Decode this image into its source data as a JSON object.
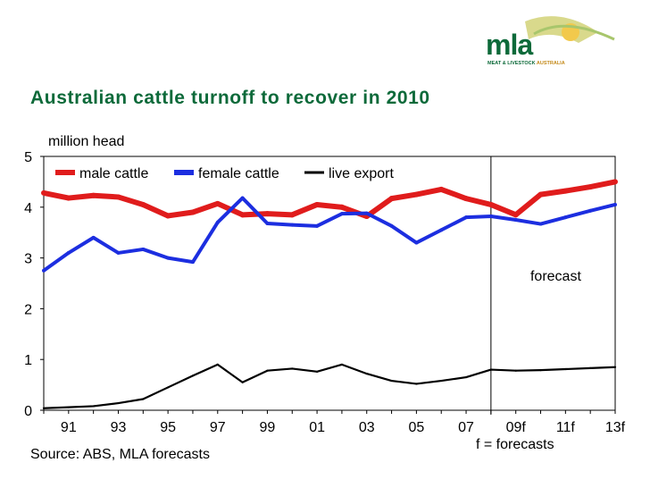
{
  "header": {
    "title": "Australian cattle turnoff to recover in 2010",
    "logo_word": "mla",
    "logo_tag_part1": "MEAT & LIVESTOCK",
    "logo_tag_part2": " AUSTRALIA"
  },
  "colors": {
    "title": "#0d6a3a",
    "male": "#e01c1c",
    "female": "#1c2ee0",
    "live_export": "#000000",
    "logo_sun": "#f2c94c"
  },
  "chart_data": {
    "type": "line",
    "ylabel": "million head",
    "ylim": [
      0,
      5
    ],
    "yticks": [
      "0",
      "1",
      "2",
      "3",
      "4",
      "5"
    ],
    "x": [
      "1990",
      "1991",
      "1992",
      "1993",
      "1994",
      "1995",
      "1996",
      "1997",
      "1998",
      "1999",
      "2000",
      "2001",
      "2002",
      "2003",
      "2004",
      "2005",
      "2006",
      "2007",
      "2008",
      "2009",
      "2010",
      "2011",
      "2012",
      "2013"
    ],
    "xticks": [
      "91",
      "93",
      "95",
      "97",
      "99",
      "01",
      "03",
      "05",
      "07",
      "09f",
      "11f",
      "13f"
    ],
    "forecast_start": "2008",
    "forecast_label": "forecast",
    "legend_position": "top",
    "series": [
      {
        "name": "male cattle",
        "key": "male",
        "values": [
          4.28,
          4.18,
          4.23,
          4.2,
          4.05,
          3.83,
          3.9,
          4.07,
          3.85,
          3.87,
          3.85,
          4.05,
          4.0,
          3.82,
          4.17,
          4.25,
          4.35,
          4.17,
          4.05,
          3.85,
          4.25,
          4.32,
          4.4,
          4.5
        ]
      },
      {
        "name": "female cattle",
        "key": "female",
        "values": [
          2.75,
          3.1,
          3.4,
          3.1,
          3.17,
          3.0,
          2.92,
          3.7,
          4.18,
          3.68,
          3.65,
          3.63,
          3.87,
          3.88,
          3.63,
          3.3,
          3.55,
          3.8,
          3.82,
          3.75,
          3.67,
          3.8,
          3.93,
          4.05
        ]
      },
      {
        "name": "live export",
        "key": "live_export",
        "values": [
          0.04,
          0.06,
          0.08,
          0.14,
          0.22,
          0.45,
          0.68,
          0.9,
          0.55,
          0.78,
          0.82,
          0.76,
          0.9,
          0.72,
          0.58,
          0.52,
          0.58,
          0.65,
          0.8,
          0.78,
          0.79,
          0.81,
          0.83,
          0.85
        ]
      }
    ]
  },
  "footer": {
    "source": "Source: ABS, MLA forecasts",
    "forecast_note": "f = forecasts"
  }
}
